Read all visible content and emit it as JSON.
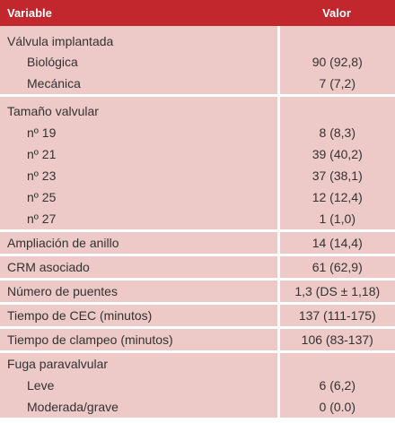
{
  "header": {
    "variable": "Variable",
    "value": "Valor"
  },
  "rows": [
    {
      "label": "Válvula implantada",
      "value": ""
    },
    {
      "label": "Biológica",
      "value": "90 (92,8)"
    },
    {
      "label": "Mecánica",
      "value": "7 (7,2)"
    },
    {
      "label": "Tamaño valvular",
      "value": ""
    },
    {
      "label": "nº 19",
      "value": "8 (8,3)"
    },
    {
      "label": "nº 21",
      "value": "39 (40,2)"
    },
    {
      "label": "nº 23",
      "value": "37 (38,1)"
    },
    {
      "label": "nº 25",
      "value": "12 (12,4)"
    },
    {
      "label": "nº 27",
      "value": "1 (1,0)"
    },
    {
      "label": "Ampliación de anillo",
      "value": "14 (14,4)"
    },
    {
      "label": "CRM asociado",
      "value": "61 (62,9)"
    },
    {
      "label": "Número de puentes",
      "value": "1,3 (DS ± 1,18)"
    },
    {
      "label": "Tiempo de CEC (minutos)",
      "value": "137 (111-175)"
    },
    {
      "label": "Tiempo de clampeo (minutos)",
      "value": "106 (83-137)"
    },
    {
      "label": "Fuga paravalvular",
      "value": ""
    },
    {
      "label": "Leve",
      "value": "6 (6,2)"
    },
    {
      "label": "Moderada/grave",
      "value": "0 (0.0)"
    }
  ],
  "colors": {
    "header_bg": "#c1272d",
    "row_bg": "#edc9c7",
    "separator": "#ffffff"
  }
}
